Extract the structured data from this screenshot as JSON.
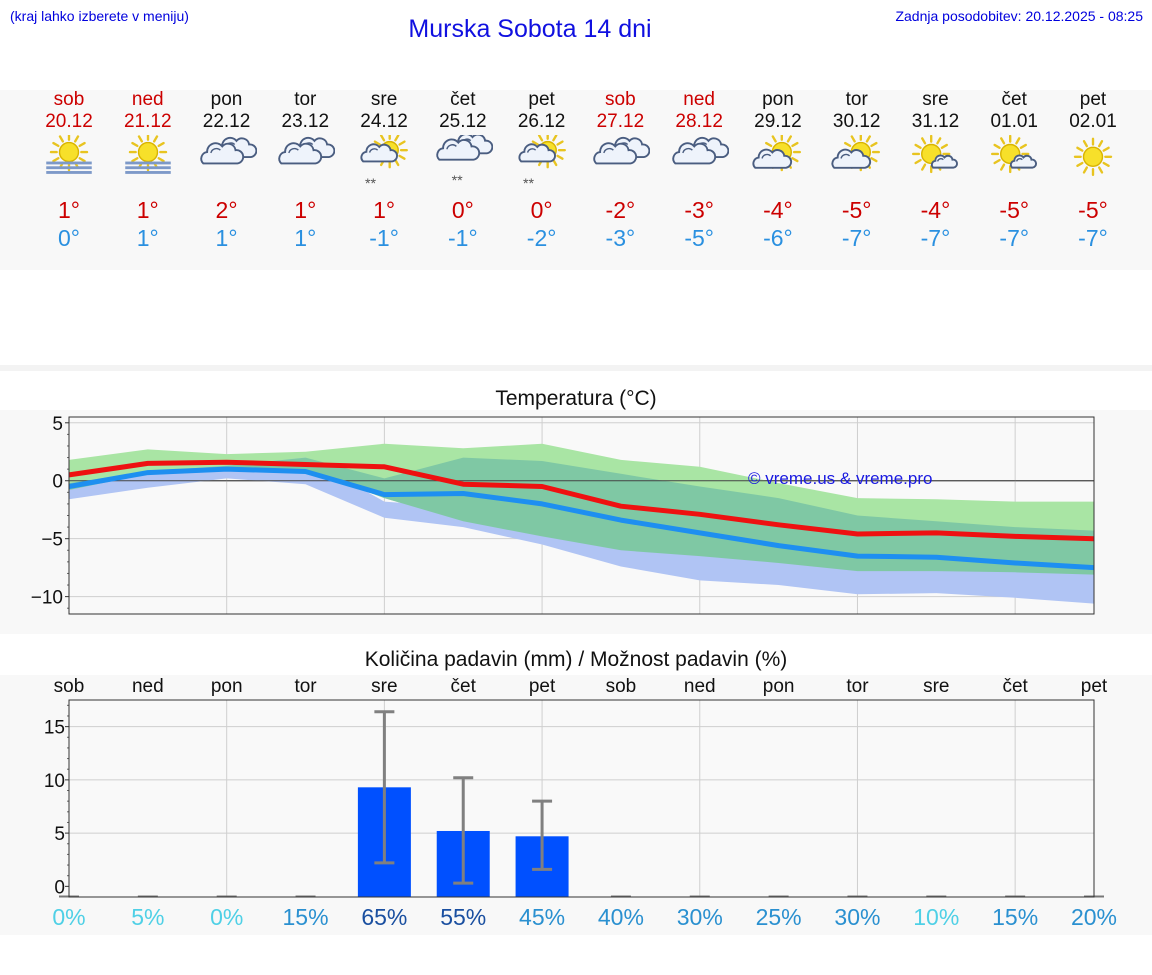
{
  "header": {
    "hint": "(kraj lahko izberete v meniju)",
    "title": "Murska Sobota 14 dni",
    "updated": "Zadnja posodobitev: 20.12.2025 - 08:25"
  },
  "days": [
    {
      "name": "sob",
      "date": "20.12",
      "weekend": true,
      "icon": "sun-fog-icon",
      "max": "1°",
      "min": "0°"
    },
    {
      "name": "ned",
      "date": "21.12",
      "weekend": true,
      "icon": "sun-fog-icon",
      "max": "1°",
      "min": "1°"
    },
    {
      "name": "pon",
      "date": "22.12",
      "weekend": false,
      "icon": "cloudy-icon",
      "max": "2°",
      "min": "1°"
    },
    {
      "name": "tor",
      "date": "23.12",
      "weekend": false,
      "icon": "cloudy-icon",
      "max": "1°",
      "min": "1°"
    },
    {
      "name": "sre",
      "date": "24.12",
      "weekend": false,
      "icon": "partly-cloudy-snow-icon",
      "max": "1°",
      "min": "-1°"
    },
    {
      "name": "čet",
      "date": "25.12",
      "weekend": false,
      "icon": "cloudy-snow-icon",
      "max": "0°",
      "min": "-1°"
    },
    {
      "name": "pet",
      "date": "26.12",
      "weekend": false,
      "icon": "partly-cloudy-snow-icon",
      "max": "0°",
      "min": "-2°"
    },
    {
      "name": "sob",
      "date": "27.12",
      "weekend": true,
      "icon": "cloudy-icon",
      "max": "-2°",
      "min": "-3°"
    },
    {
      "name": "ned",
      "date": "28.12",
      "weekend": true,
      "icon": "cloudy-icon",
      "max": "-3°",
      "min": "-5°"
    },
    {
      "name": "pon",
      "date": "29.12",
      "weekend": false,
      "icon": "partly-cloudy-icon",
      "max": "-4°",
      "min": "-6°"
    },
    {
      "name": "tor",
      "date": "30.12",
      "weekend": false,
      "icon": "partly-cloudy-icon",
      "max": "-5°",
      "min": "-7°"
    },
    {
      "name": "sre",
      "date": "31.12",
      "weekend": false,
      "icon": "sun-small-cloud-icon",
      "max": "-4°",
      "min": "-7°"
    },
    {
      "name": "čet",
      "date": "01.01",
      "weekend": false,
      "icon": "sun-small-cloud-icon",
      "max": "-5°",
      "min": "-7°"
    },
    {
      "name": "pet",
      "date": "02.01",
      "weekend": false,
      "icon": "sun-icon",
      "max": "-5°",
      "min": "-7°"
    }
  ],
  "precip_chance": [
    "0%",
    "5%",
    "0%",
    "15%",
    "65%",
    "55%",
    "45%",
    "40%",
    "30%",
    "25%",
    "30%",
    "10%",
    "15%",
    "20%"
  ],
  "colors": {
    "max_line": "#ee1111",
    "min_line": "#1e8ff0",
    "max_band": "#a9e5a4",
    "min_band": "#b0c4f4",
    "overlap_band": "#7fc8a4",
    "bar": "#0050ff",
    "error": "#808080",
    "weekend": "#cc0000"
  },
  "chart_data": [
    {
      "type": "line",
      "title": "Temperatura (°C)",
      "watermark": "© vreme.us & vreme.pro",
      "ylim": [
        -11.5,
        5.5
      ],
      "yticks": [
        5,
        0,
        -5,
        -10
      ],
      "ytick_labels": [
        "5",
        "0",
        "−5",
        "−10"
      ],
      "x": [
        0,
        1,
        2,
        3,
        4,
        5,
        6,
        7,
        8,
        9,
        10,
        11,
        12,
        13
      ],
      "series": [
        {
          "name": "max",
          "values": [
            0.5,
            1.5,
            1.6,
            1.4,
            1.2,
            -0.3,
            -0.5,
            -2.2,
            -2.9,
            -3.8,
            -4.6,
            -4.5,
            -4.8,
            -5.0
          ]
        },
        {
          "name": "min",
          "values": [
            -0.5,
            0.7,
            1.0,
            0.8,
            -1.2,
            -1.1,
            -2.0,
            -3.4,
            -4.5,
            -5.6,
            -6.5,
            -6.6,
            -7.1,
            -7.5
          ]
        },
        {
          "name": "max_range_high",
          "values": [
            1.8,
            2.7,
            2.3,
            2.5,
            3.2,
            2.8,
            3.2,
            1.8,
            1.2,
            -0.2,
            -1.5,
            -1.6,
            -1.8,
            -1.8
          ]
        },
        {
          "name": "max_range_low",
          "values": [
            -0.8,
            0.6,
            1.1,
            1.0,
            -1.5,
            -3.5,
            -4.8,
            -6.0,
            -6.5,
            -7.1,
            -7.8,
            -7.8,
            -7.9,
            -8.1
          ]
        },
        {
          "name": "min_range_high",
          "values": [
            -0.2,
            0.8,
            1.3,
            2.0,
            -1.8,
            -2.3,
            -3.8,
            -4.5,
            -5.0,
            -5.8,
            -6.8,
            -6.8,
            -7.2,
            -7.6
          ]
        },
        {
          "name": "min_range_low",
          "values": [
            -1.6,
            -0.6,
            0.2,
            -0.3,
            -3.2,
            -4.0,
            -5.5,
            -7.4,
            -8.6,
            -9.0,
            -9.8,
            -9.7,
            -10.1,
            -10.6
          ]
        },
        {
          "name": "overlap_high",
          "values": [
            -0.2,
            0.8,
            1.3,
            2.0,
            0.2,
            2.0,
            1.7,
            0.6,
            -0.5,
            -1.5,
            -3.0,
            -3.5,
            -4.0,
            -4.3
          ]
        },
        {
          "name": "overlap_low",
          "values": [
            -0.8,
            0.6,
            1.1,
            1.0,
            -1.5,
            -3.5,
            -4.8,
            -6.0,
            -6.5,
            -7.1,
            -7.8,
            -7.8,
            -7.9,
            -8.1
          ]
        }
      ]
    },
    {
      "type": "bar",
      "title": "Količina padavin (mm) / Možnost padavin (%)",
      "categories": [
        "sob",
        "ned",
        "pon",
        "tor",
        "sre",
        "čet",
        "pet",
        "sob",
        "ned",
        "pon",
        "tor",
        "sre",
        "čet",
        "pet"
      ],
      "ylim": [
        -1,
        17.5
      ],
      "yticks": [
        0,
        5,
        10,
        15
      ],
      "ytick_labels": [
        "0",
        "5",
        "10",
        "15"
      ],
      "values": [
        0,
        0,
        0,
        0,
        9.3,
        5.2,
        4.7,
        0,
        0,
        0,
        0,
        0,
        0,
        0
      ],
      "error_low": [
        0,
        0,
        0,
        0,
        2.2,
        0.3,
        1.6,
        0,
        0,
        0,
        0,
        0,
        0,
        0
      ],
      "error_high": [
        0,
        0,
        0,
        0,
        16.4,
        10.2,
        8.0,
        0,
        0,
        0,
        0,
        0,
        0,
        0
      ]
    }
  ]
}
